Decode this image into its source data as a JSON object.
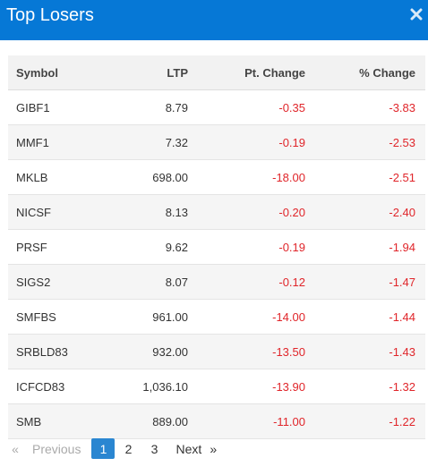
{
  "header": {
    "title": "Top Losers",
    "close_icon": "close-icon"
  },
  "table": {
    "columns": [
      "Symbol",
      "LTP",
      "Pt. Change",
      "% Change"
    ],
    "rows": [
      {
        "symbol": "GIBF1",
        "ltp": "8.79",
        "pt_change": "-0.35",
        "pct_change": "-3.83"
      },
      {
        "symbol": "MMF1",
        "ltp": "7.32",
        "pt_change": "-0.19",
        "pct_change": "-2.53"
      },
      {
        "symbol": "MKLB",
        "ltp": "698.00",
        "pt_change": "-18.00",
        "pct_change": "-2.51"
      },
      {
        "symbol": "NICSF",
        "ltp": "8.13",
        "pt_change": "-0.20",
        "pct_change": "-2.40"
      },
      {
        "symbol": "PRSF",
        "ltp": "9.62",
        "pt_change": "-0.19",
        "pct_change": "-1.94"
      },
      {
        "symbol": "SIGS2",
        "ltp": "8.07",
        "pt_change": "-0.12",
        "pct_change": "-1.47"
      },
      {
        "symbol": "SMFBS",
        "ltp": "961.00",
        "pt_change": "-14.00",
        "pct_change": "-1.44"
      },
      {
        "symbol": "SRBLD83",
        "ltp": "932.00",
        "pt_change": "-13.50",
        "pct_change": "-1.43"
      },
      {
        "symbol": "ICFCD83",
        "ltp": "1,036.10",
        "pt_change": "-13.90",
        "pct_change": "-1.32"
      },
      {
        "symbol": "SMB",
        "ltp": "889.00",
        "pt_change": "-11.00",
        "pct_change": "-1.22"
      }
    ]
  },
  "pagination": {
    "prev_arrow": "«",
    "previous": "Previous",
    "pages": [
      "1",
      "2",
      "3"
    ],
    "active_page": "1",
    "next": "Next",
    "next_arrow": "»"
  },
  "colors": {
    "header_bg": "#0678d6",
    "negative": "#e0252a",
    "active_page_bg": "#2a86d1"
  }
}
